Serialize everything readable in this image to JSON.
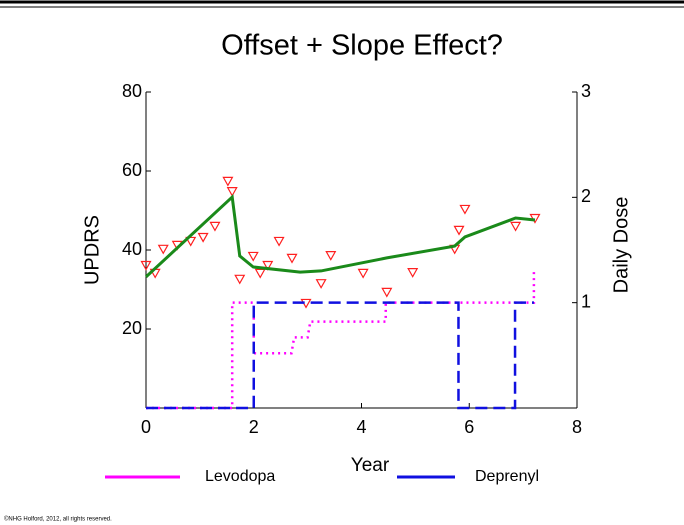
{
  "chart_data": {
    "type": "line",
    "title": "Offset + Slope Effect?",
    "xlabel": "Year",
    "ylabel": "UPDRS",
    "y2label": "Daily Dose",
    "xlim": [
      0,
      8
    ],
    "xticks": [
      0,
      2,
      4,
      6,
      8
    ],
    "ylim": [
      0,
      80
    ],
    "yticks": [
      20,
      40,
      60,
      80
    ],
    "y2lim": [
      0,
      3
    ],
    "y2ticks": [
      1,
      2,
      3
    ],
    "series": [
      {
        "style": "markers",
        "color": "#ff2020",
        "x": [
          0,
          0.17,
          0.32,
          0.58,
          0.83,
          1.06,
          1.28,
          1.52,
          1.6,
          1.74,
          1.99,
          2.12,
          2.26,
          2.47,
          2.71,
          2.97,
          3.25,
          3.43,
          4.03,
          4.47,
          4.95,
          5.73,
          5.81,
          5.92,
          6.86,
          7.22
        ],
        "values": [
          36.2,
          34.2,
          40.3,
          41.3,
          42.3,
          43.3,
          46.1,
          57.5,
          54.9,
          32.7,
          38.5,
          34.2,
          36.2,
          42.3,
          38,
          26.6,
          31.6,
          38.7,
          34.2,
          29.4,
          34.4,
          40.3,
          45.1,
          50.4,
          46.1,
          48.1
        ]
      },
      {
        "style": "solid",
        "color": "#1a8a1a",
        "x": [
          0,
          1.6,
          1.74,
          1.99,
          2.86,
          3.25,
          4.47,
          5.73,
          5.92,
          6.86,
          7.22
        ],
        "values": [
          33.2,
          53.4,
          38.5,
          35.7,
          34.4,
          34.7,
          38,
          41,
          43.3,
          48.1,
          47.6
        ]
      },
      {
        "name": "Levodopa",
        "style": "dotted",
        "color": "#ff00ff",
        "axis": "y2",
        "x": [
          0,
          1.6,
          1.6,
          2.0,
          2.0,
          2.7,
          2.75,
          3.0,
          3.05,
          4.45,
          4.45,
          7.2,
          7.2
        ],
        "values": [
          0,
          0,
          1,
          1,
          0.52,
          0.52,
          0.67,
          0.67,
          0.82,
          0.82,
          1,
          1,
          1.3
        ]
      },
      {
        "name": "Deprenyl",
        "style": "dashed",
        "color": "#1010e0",
        "axis": "y2",
        "x": [
          0,
          2.0,
          2.0,
          5.8,
          5.8,
          6.85,
          6.85,
          7.2
        ],
        "values": [
          0,
          0,
          1,
          1,
          0,
          0,
          1,
          1
        ]
      }
    ],
    "title_color": "#e84118",
    "footer": "©NHG Holford, 2012, all rights reserved."
  }
}
